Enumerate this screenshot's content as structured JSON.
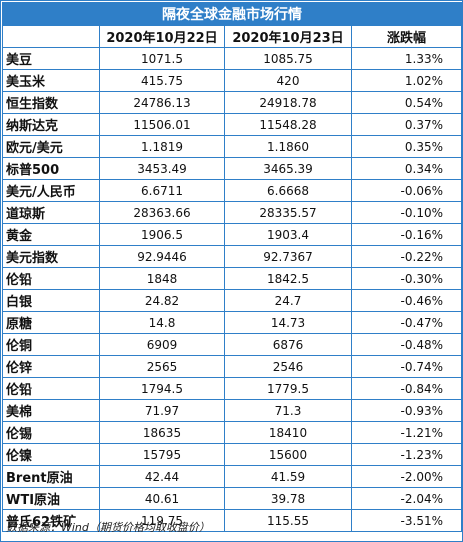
{
  "title": "隔夜全球金融市场行情",
  "headers": {
    "name": "",
    "date1": "2020年10月22日",
    "date2": "2020年10月23日",
    "change": "涨跌幅"
  },
  "rows": [
    {
      "name": "美豆",
      "d1": "1071.5",
      "d2": "1085.75",
      "chg": "1.33%"
    },
    {
      "name": "美玉米",
      "d1": "415.75",
      "d2": "420",
      "chg": "1.02%"
    },
    {
      "name": "恒生指数",
      "d1": "24786.13",
      "d2": "24918.78",
      "chg": "0.54%"
    },
    {
      "name": "纳斯达克",
      "d1": "11506.01",
      "d2": "11548.28",
      "chg": "0.37%"
    },
    {
      "name": "欧元/美元",
      "d1": "1.1819",
      "d2": "1.1860",
      "chg": "0.35%"
    },
    {
      "name": "标普500",
      "d1": "3453.49",
      "d2": "3465.39",
      "chg": "0.34%"
    },
    {
      "name": "美元/人民币",
      "d1": "6.6711",
      "d2": "6.6668",
      "chg": "-0.06%"
    },
    {
      "name": "道琼斯",
      "d1": "28363.66",
      "d2": "28335.57",
      "chg": "-0.10%"
    },
    {
      "name": "黄金",
      "d1": "1906.5",
      "d2": "1903.4",
      "chg": "-0.16%"
    },
    {
      "name": "美元指数",
      "d1": "92.9446",
      "d2": "92.7367",
      "chg": "-0.22%"
    },
    {
      "name": "伦铅",
      "d1": "1848",
      "d2": "1842.5",
      "chg": "-0.30%"
    },
    {
      "name": "白银",
      "d1": "24.82",
      "d2": "24.7",
      "chg": "-0.46%"
    },
    {
      "name": "原糖",
      "d1": "14.8",
      "d2": "14.73",
      "chg": "-0.47%"
    },
    {
      "name": "伦铜",
      "d1": "6909",
      "d2": "6876",
      "chg": "-0.48%"
    },
    {
      "name": "伦锌",
      "d1": "2565",
      "d2": "2546",
      "chg": "-0.74%"
    },
    {
      "name": "伦铅",
      "d1": "1794.5",
      "d2": "1779.5",
      "chg": "-0.84%"
    },
    {
      "name": "美棉",
      "d1": "71.97",
      "d2": "71.3",
      "chg": "-0.93%"
    },
    {
      "name": "伦锡",
      "d1": "18635",
      "d2": "18410",
      "chg": "-1.21%"
    },
    {
      "name": "伦镍",
      "d1": "15795",
      "d2": "15600",
      "chg": "-1.23%"
    },
    {
      "name": "Brent原油",
      "d1": "42.44",
      "d2": "41.59",
      "chg": "-2.00%"
    },
    {
      "name": "WTI原油",
      "d1": "40.61",
      "d2": "39.78",
      "chg": "-2.04%"
    },
    {
      "name": "普氏62铁矿",
      "d1": "119.75",
      "d2": "115.55",
      "chg": "-3.51%"
    }
  ],
  "footer": "数据来源：Wind（期货价格均取收盘价）",
  "colors": {
    "border": "#2f7fc8",
    "title_bg": "#2f7fc8",
    "title_text": "#ffffff"
  }
}
